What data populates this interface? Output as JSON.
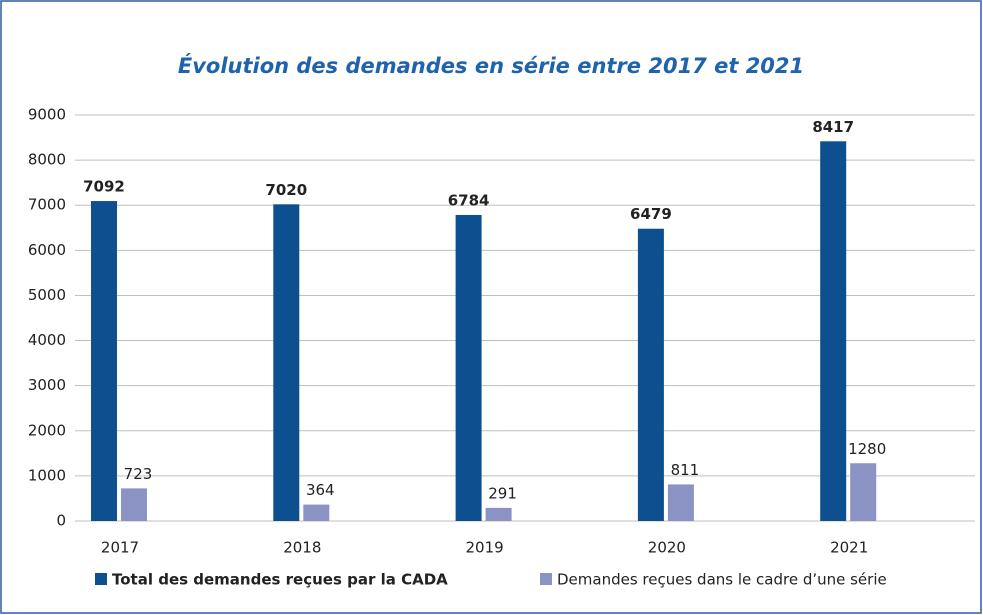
{
  "chart_data": {
    "type": "bar",
    "title": "Évolution des demandes en série entre 2017 et 2021",
    "categories": [
      "2017",
      "2018",
      "2019",
      "2020",
      "2021"
    ],
    "series": [
      {
        "name": "Total des demandes reçues par la CADA",
        "color": "#0d4f8f",
        "values": [
          7092,
          7020,
          6784,
          6479,
          8417
        ]
      },
      {
        "name": "Demandes reçues dans le cadre d’une série",
        "color": "#8b93c4",
        "values": [
          723,
          364,
          291,
          811,
          1280
        ]
      }
    ],
    "ylim": [
      0,
      9000
    ],
    "yticks": [
      0,
      1000,
      2000,
      3000,
      4000,
      5000,
      6000,
      7000,
      8000,
      9000
    ],
    "grid": true,
    "legend": "bottom"
  }
}
